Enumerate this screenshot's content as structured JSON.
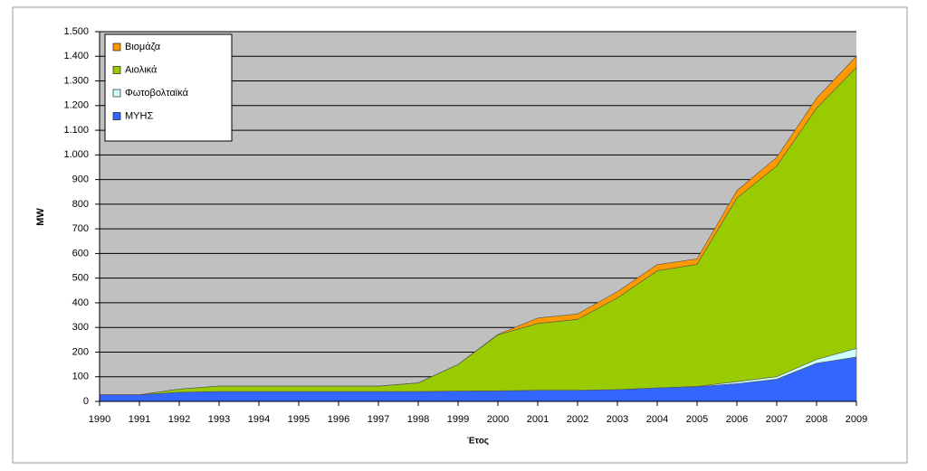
{
  "chart_data": {
    "type": "stacked-area",
    "x_label": "Έτος",
    "y_label": "MW",
    "categories": [
      "1990",
      "1991",
      "1992",
      "1993",
      "1994",
      "1995",
      "1996",
      "1997",
      "1998",
      "1999",
      "2000",
      "2001",
      "2002",
      "2003",
      "2004",
      "2005",
      "2006",
      "2007",
      "2008",
      "2009"
    ],
    "series": [
      {
        "name": "ΜΥΗΣ",
        "color": "#3366ff",
        "values": [
          27,
          27,
          37,
          40,
          40,
          40,
          40,
          40,
          40,
          42,
          43,
          45,
          45,
          48,
          55,
          60,
          72,
          90,
          155,
          180
        ]
      },
      {
        "name": "Φωτοβολταϊκά",
        "color": "#ccffff",
        "values": [
          0,
          0,
          0,
          0,
          0,
          0,
          0,
          0,
          0,
          0,
          0,
          0,
          0,
          0,
          0,
          1,
          8,
          10,
          15,
          35
        ]
      },
      {
        "name": "Αιολικά",
        "color": "#99cc00",
        "values": [
          0,
          0,
          13,
          22,
          22,
          22,
          22,
          22,
          35,
          108,
          227,
          271,
          288,
          372,
          475,
          495,
          745,
          855,
          1020,
          1140
        ]
      },
      {
        "name": "Βιομάζα",
        "color": "#ff9900",
        "values": [
          0,
          0,
          0,
          0,
          0,
          0,
          0,
          0,
          0,
          0,
          2,
          22,
          22,
          25,
          25,
          22,
          30,
          35,
          40,
          45
        ]
      }
    ],
    "ylim": [
      0,
      1500
    ],
    "yticks": [
      0,
      100,
      200,
      300,
      400,
      500,
      600,
      700,
      800,
      900,
      {
        "value": 1000,
        "label": "1.000"
      },
      {
        "value": 1100,
        "label": "1.100"
      },
      {
        "value": 1200,
        "label": "1.200"
      },
      {
        "value": 1300,
        "label": "1.300"
      },
      {
        "value": 1400,
        "label": "1.400"
      },
      {
        "value": 1500,
        "label": "1.500"
      }
    ],
    "grid": true,
    "plot_background": "#c0c0c0",
    "legend": "top-left"
  }
}
